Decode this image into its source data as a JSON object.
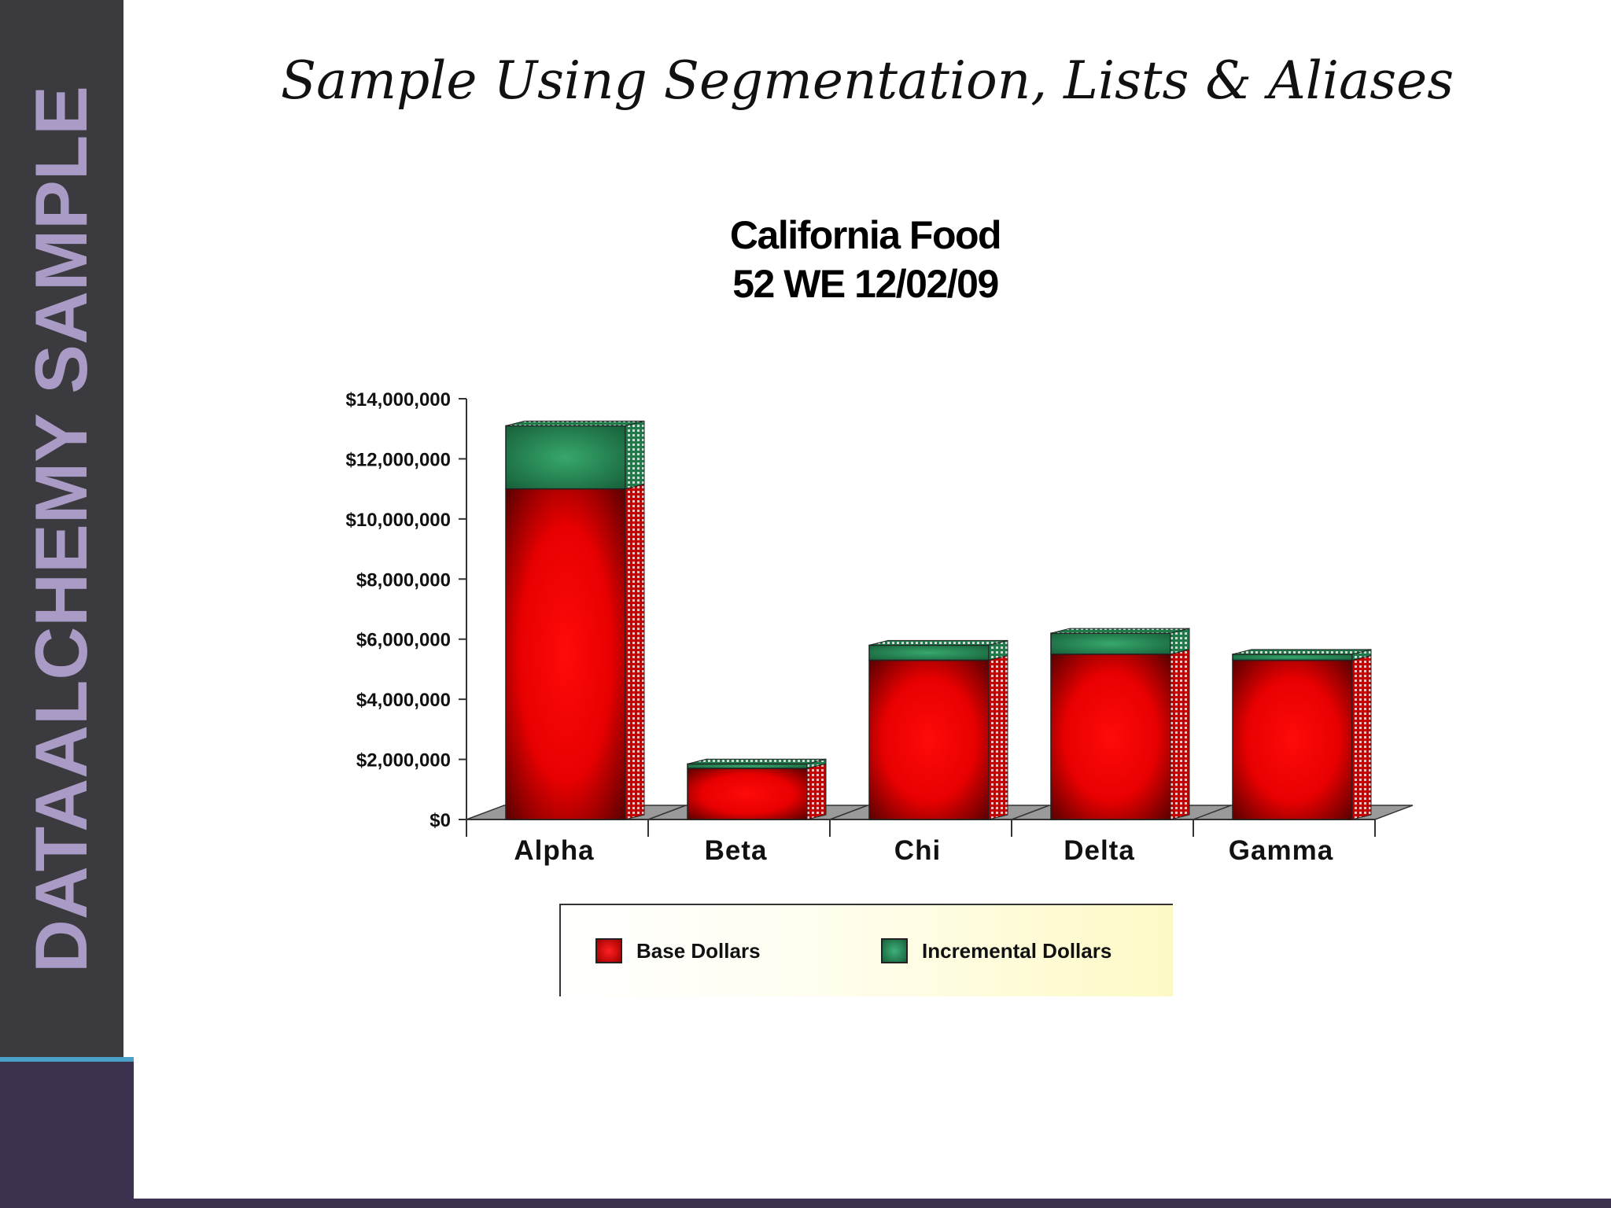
{
  "slide": {
    "sidebar_label": "DATAALCHEMY SAMPLE",
    "title": "Sample Using Segmentation, Lists & Aliases"
  },
  "colors": {
    "base": "#ff0000",
    "incremental": "#2e9a62",
    "sidebar": "#3b3b3f",
    "sidebar_text": "#a99bc6"
  },
  "chart_data": {
    "type": "bar",
    "stacked": true,
    "title": "California Food",
    "subtitle": "52 WE 12/02/09",
    "categories": [
      "Alpha",
      "Beta",
      "Chi",
      "Delta",
      "Gamma"
    ],
    "series": [
      {
        "name": "Base Dollars",
        "values": [
          11000000,
          1700000,
          5300000,
          5500000,
          5300000
        ]
      },
      {
        "name": "Incremental Dollars",
        "values": [
          2100000,
          150000,
          500000,
          700000,
          200000
        ]
      }
    ],
    "ylim": [
      0,
      14000000
    ],
    "yticks": [
      "$0",
      "$2,000,000",
      "$4,000,000",
      "$6,000,000",
      "$8,000,000",
      "$10,000,000",
      "$12,000,000",
      "$14,000,000"
    ],
    "grid": false,
    "legend_position": "bottom"
  }
}
